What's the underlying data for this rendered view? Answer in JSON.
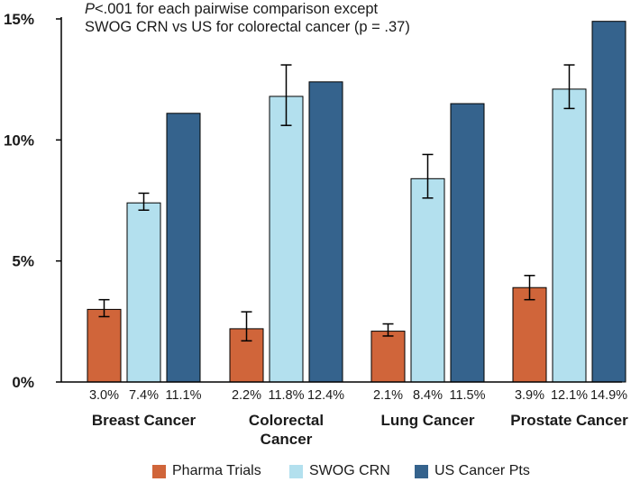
{
  "chart_data": {
    "type": "bar",
    "title_lines": {
      "line1_italic": "P",
      "line1_rest": "<.001 for each pairwise comparison except",
      "line2": "SWOG CRN vs US for colorectal cancer (p = .37)"
    },
    "categories": [
      "Breast Cancer",
      "Colorectal Cancer",
      "Lung Cancer",
      "Prostate Cancer"
    ],
    "category_label_lines": [
      [
        "Breast Cancer"
      ],
      [
        "Colorectal",
        "Cancer"
      ],
      [
        "Lung Cancer"
      ],
      [
        "Prostate Cancer"
      ]
    ],
    "series": [
      {
        "name": "Pharma Trials",
        "color": "#d0653a",
        "values": [
          3.0,
          2.2,
          2.1,
          3.9
        ],
        "error_low": [
          2.7,
          1.7,
          1.9,
          3.4
        ],
        "error_high": [
          3.4,
          2.9,
          2.4,
          4.4
        ],
        "value_labels": [
          "3.0%",
          "2.2%",
          "2.1%",
          "3.9%"
        ]
      },
      {
        "name": "SWOG CRN",
        "color": "#b3e0ee",
        "values": [
          7.4,
          11.8,
          8.4,
          12.1
        ],
        "error_low": [
          7.1,
          10.6,
          7.6,
          11.3
        ],
        "error_high": [
          7.8,
          13.1,
          9.4,
          13.1
        ],
        "value_labels": [
          "7.4%",
          "11.8%",
          "8.4%",
          "12.1%"
        ]
      },
      {
        "name": "US Cancer Pts",
        "color": "#35638d",
        "values": [
          11.1,
          12.4,
          11.5,
          14.9
        ],
        "value_labels": [
          "11.1%",
          "12.4%",
          "11.5%",
          "14.9%"
        ]
      }
    ],
    "yticks": [
      0,
      5,
      10,
      15
    ],
    "ytick_labels": [
      "0%",
      "5%",
      "10%",
      "15%"
    ],
    "ylim": [
      0,
      15
    ],
    "xlabel": "",
    "ylabel": "",
    "grid": false,
    "legend_position": "bottom"
  }
}
